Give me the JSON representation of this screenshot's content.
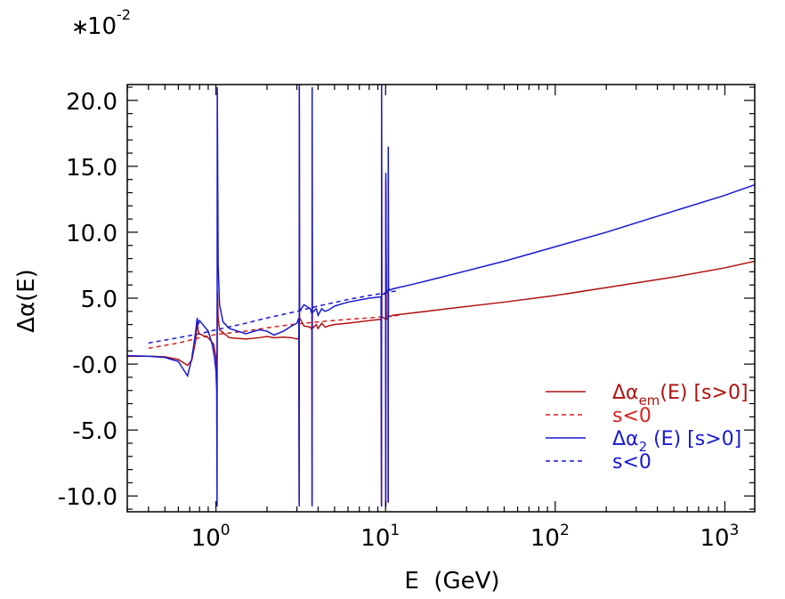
{
  "chart_data": {
    "type": "line",
    "scale_multiplier": {
      "base": "10",
      "exponent": "-2"
    },
    "xlabel": "E  (GeV)",
    "ylabel": "Δα(E)",
    "xscale": "log",
    "xlim": [
      0.3,
      1500
    ],
    "ylim": [
      -11.2,
      21.2
    ],
    "x_ticks": [
      {
        "value": 1,
        "base": "10",
        "exp": "0"
      },
      {
        "value": 10,
        "base": "10",
        "exp": "1"
      },
      {
        "value": 100,
        "base": "10",
        "exp": "2"
      },
      {
        "value": 1000,
        "base": "10",
        "exp": "3"
      }
    ],
    "y_ticks": [
      {
        "value": 20,
        "label": "20.0"
      },
      {
        "value": 15,
        "label": "15.0"
      },
      {
        "value": 10,
        "label": "10.0"
      },
      {
        "value": 5,
        "label": "5.0"
      },
      {
        "value": 0,
        "label": "-0.0"
      },
      {
        "value": -5,
        "label": "-5.0"
      },
      {
        "value": -10,
        "label": "-10.0"
      }
    ],
    "grid": false,
    "legend_position": "lower-right",
    "colors": {
      "em": "#b01010",
      "em_dash": "#d82020",
      "two": "#1818d0"
    },
    "legend": [
      {
        "sym": "Δα",
        "sub": "em",
        "rest": "(E)  [s>0]",
        "color": "#b01010",
        "dash": false
      },
      {
        "sym": "",
        "sub": "",
        "rest": "s<0",
        "color": "#d82020",
        "dash": true
      },
      {
        "sym": "Δα",
        "sub": "2",
        "rest": " (E)  [s>0]",
        "color": "#1818d0",
        "dash": false
      },
      {
        "sym": "",
        "sub": "",
        "rest": "s<0",
        "color": "#1818d0",
        "dash": true
      }
    ],
    "series": [
      {
        "key": "em_spacelike",
        "dash": true,
        "color": "#d82020",
        "points": [
          [
            0.4,
            1.2
          ],
          [
            0.6,
            1.6
          ],
          [
            0.8,
            2.0
          ],
          [
            1.0,
            2.25
          ],
          [
            1.5,
            2.5
          ],
          [
            2.0,
            2.75
          ],
          [
            3.0,
            3.05
          ],
          [
            4.0,
            3.2
          ],
          [
            6.0,
            3.4
          ],
          [
            8.0,
            3.5
          ],
          [
            10.0,
            3.6
          ],
          [
            12.0,
            3.7
          ]
        ]
      },
      {
        "key": "two_spacelike",
        "dash": true,
        "color": "#1818d0",
        "points": [
          [
            0.4,
            1.6
          ],
          [
            0.6,
            2.0
          ],
          [
            0.8,
            2.3
          ],
          [
            1.0,
            2.6
          ],
          [
            1.5,
            3.1
          ],
          [
            2.0,
            3.5
          ],
          [
            3.0,
            4.0
          ],
          [
            4.0,
            4.4
          ],
          [
            6.0,
            4.9
          ],
          [
            8.0,
            5.2
          ],
          [
            10.0,
            5.4
          ],
          [
            12.0,
            5.6
          ]
        ]
      },
      {
        "key": "em_timelike",
        "dash": false,
        "color": "#b01010",
        "points": [
          [
            0.28,
            0.6
          ],
          [
            0.4,
            0.6
          ],
          [
            0.5,
            0.55
          ],
          [
            0.6,
            0.35
          ],
          [
            0.68,
            -0.1
          ],
          [
            0.72,
            0.3
          ],
          [
            0.76,
            1.8
          ],
          [
            0.775,
            3.3
          ],
          [
            0.785,
            2.5
          ],
          [
            0.8,
            2.3
          ],
          [
            0.9,
            2.0
          ],
          [
            0.97,
            1.5
          ],
          [
            1.0,
            0.5
          ],
          [
            1.01,
            -0.6
          ],
          [
            1.015,
            0.5
          ],
          [
            1.02,
            5.5
          ],
          [
            1.03,
            3.5
          ],
          [
            1.05,
            2.6
          ],
          [
            1.2,
            2.0
          ],
          [
            1.5,
            1.9
          ],
          [
            1.8,
            2.0
          ],
          [
            2.0,
            2.1
          ],
          [
            2.2,
            2.0
          ],
          [
            2.5,
            2.05
          ],
          [
            2.8,
            2.0
          ],
          [
            3.0,
            1.9
          ],
          [
            3.08,
            2.0
          ],
          [
            3.095,
            -10.5
          ],
          [
            3.1,
            21.0
          ],
          [
            3.11,
            3.5
          ],
          [
            3.3,
            2.9
          ],
          [
            3.6,
            2.8
          ],
          [
            3.68,
            2.6
          ],
          [
            3.686,
            -10.5
          ],
          [
            3.69,
            20.5
          ],
          [
            3.7,
            2.7
          ],
          [
            3.9,
            3.0
          ],
          [
            4.0,
            2.7
          ],
          [
            4.2,
            3.1
          ],
          [
            4.4,
            2.8
          ],
          [
            4.6,
            2.9
          ],
          [
            5.0,
            3.0
          ],
          [
            6.0,
            3.1
          ],
          [
            8.0,
            3.3
          ],
          [
            9.4,
            3.4
          ],
          [
            9.46,
            -10.8
          ],
          [
            9.47,
            21.0
          ],
          [
            9.5,
            3.6
          ],
          [
            10.0,
            3.4
          ],
          [
            10.02,
            -10.8
          ],
          [
            10.03,
            14.0
          ],
          [
            10.1,
            3.4
          ],
          [
            10.35,
            3.5
          ],
          [
            10.36,
            -10.5
          ],
          [
            10.37,
            16.3
          ],
          [
            10.4,
            3.6
          ],
          [
            10.6,
            3.6
          ],
          [
            11.0,
            3.7
          ],
          [
            15.0,
            3.9
          ],
          [
            20.0,
            4.1
          ],
          [
            50.0,
            4.7
          ],
          [
            100.0,
            5.2
          ],
          [
            200.0,
            5.8
          ],
          [
            500.0,
            6.6
          ],
          [
            1000.0,
            7.3
          ],
          [
            1500.0,
            7.8
          ]
        ]
      },
      {
        "key": "two_timelike",
        "dash": false,
        "color": "#1818d0",
        "points": [
          [
            0.28,
            0.65
          ],
          [
            0.4,
            0.6
          ],
          [
            0.5,
            0.5
          ],
          [
            0.6,
            0.2
          ],
          [
            0.68,
            -0.9
          ],
          [
            0.72,
            0.4
          ],
          [
            0.76,
            2.5
          ],
          [
            0.775,
            3.5
          ],
          [
            0.785,
            3.0
          ],
          [
            0.8,
            3.3
          ],
          [
            0.9,
            2.5
          ],
          [
            0.95,
            1.5
          ],
          [
            0.98,
            0.5
          ],
          [
            1.0,
            -0.5
          ],
          [
            1.01,
            -2.0
          ],
          [
            1.015,
            -10.8
          ],
          [
            1.018,
            21.0
          ],
          [
            1.03,
            7.5
          ],
          [
            1.05,
            4.5
          ],
          [
            1.1,
            3.2
          ],
          [
            1.2,
            2.7
          ],
          [
            1.5,
            2.3
          ],
          [
            1.8,
            2.6
          ],
          [
            2.0,
            2.5
          ],
          [
            2.2,
            2.2
          ],
          [
            2.5,
            2.5
          ],
          [
            2.8,
            2.9
          ],
          [
            3.0,
            3.1
          ],
          [
            3.08,
            3.5
          ],
          [
            3.095,
            -10.8
          ],
          [
            3.1,
            21.2
          ],
          [
            3.11,
            4.0
          ],
          [
            3.3,
            4.5
          ],
          [
            3.6,
            4.2
          ],
          [
            3.68,
            3.8
          ],
          [
            3.686,
            -10.8
          ],
          [
            3.69,
            21.0
          ],
          [
            3.7,
            3.9
          ],
          [
            3.9,
            4.2
          ],
          [
            4.0,
            3.7
          ],
          [
            4.2,
            4.2
          ],
          [
            4.4,
            4.0
          ],
          [
            4.6,
            4.1
          ],
          [
            5.0,
            4.4
          ],
          [
            6.0,
            4.7
          ],
          [
            8.0,
            5.0
          ],
          [
            9.4,
            5.1
          ],
          [
            9.46,
            -10.8
          ],
          [
            9.47,
            21.2
          ],
          [
            9.5,
            5.3
          ],
          [
            10.0,
            5.3
          ],
          [
            10.02,
            -10.8
          ],
          [
            10.03,
            14.5
          ],
          [
            10.1,
            5.5
          ],
          [
            10.35,
            5.6
          ],
          [
            10.36,
            -10.5
          ],
          [
            10.37,
            16.5
          ],
          [
            10.4,
            5.8
          ],
          [
            10.6,
            5.6
          ],
          [
            11.0,
            5.7
          ],
          [
            15.0,
            6.1
          ],
          [
            20.0,
            6.5
          ],
          [
            50.0,
            7.8
          ],
          [
            100.0,
            8.9
          ],
          [
            200.0,
            10.0
          ],
          [
            500.0,
            11.6
          ],
          [
            1000.0,
            12.8
          ],
          [
            1500.0,
            13.6
          ]
        ]
      }
    ]
  }
}
